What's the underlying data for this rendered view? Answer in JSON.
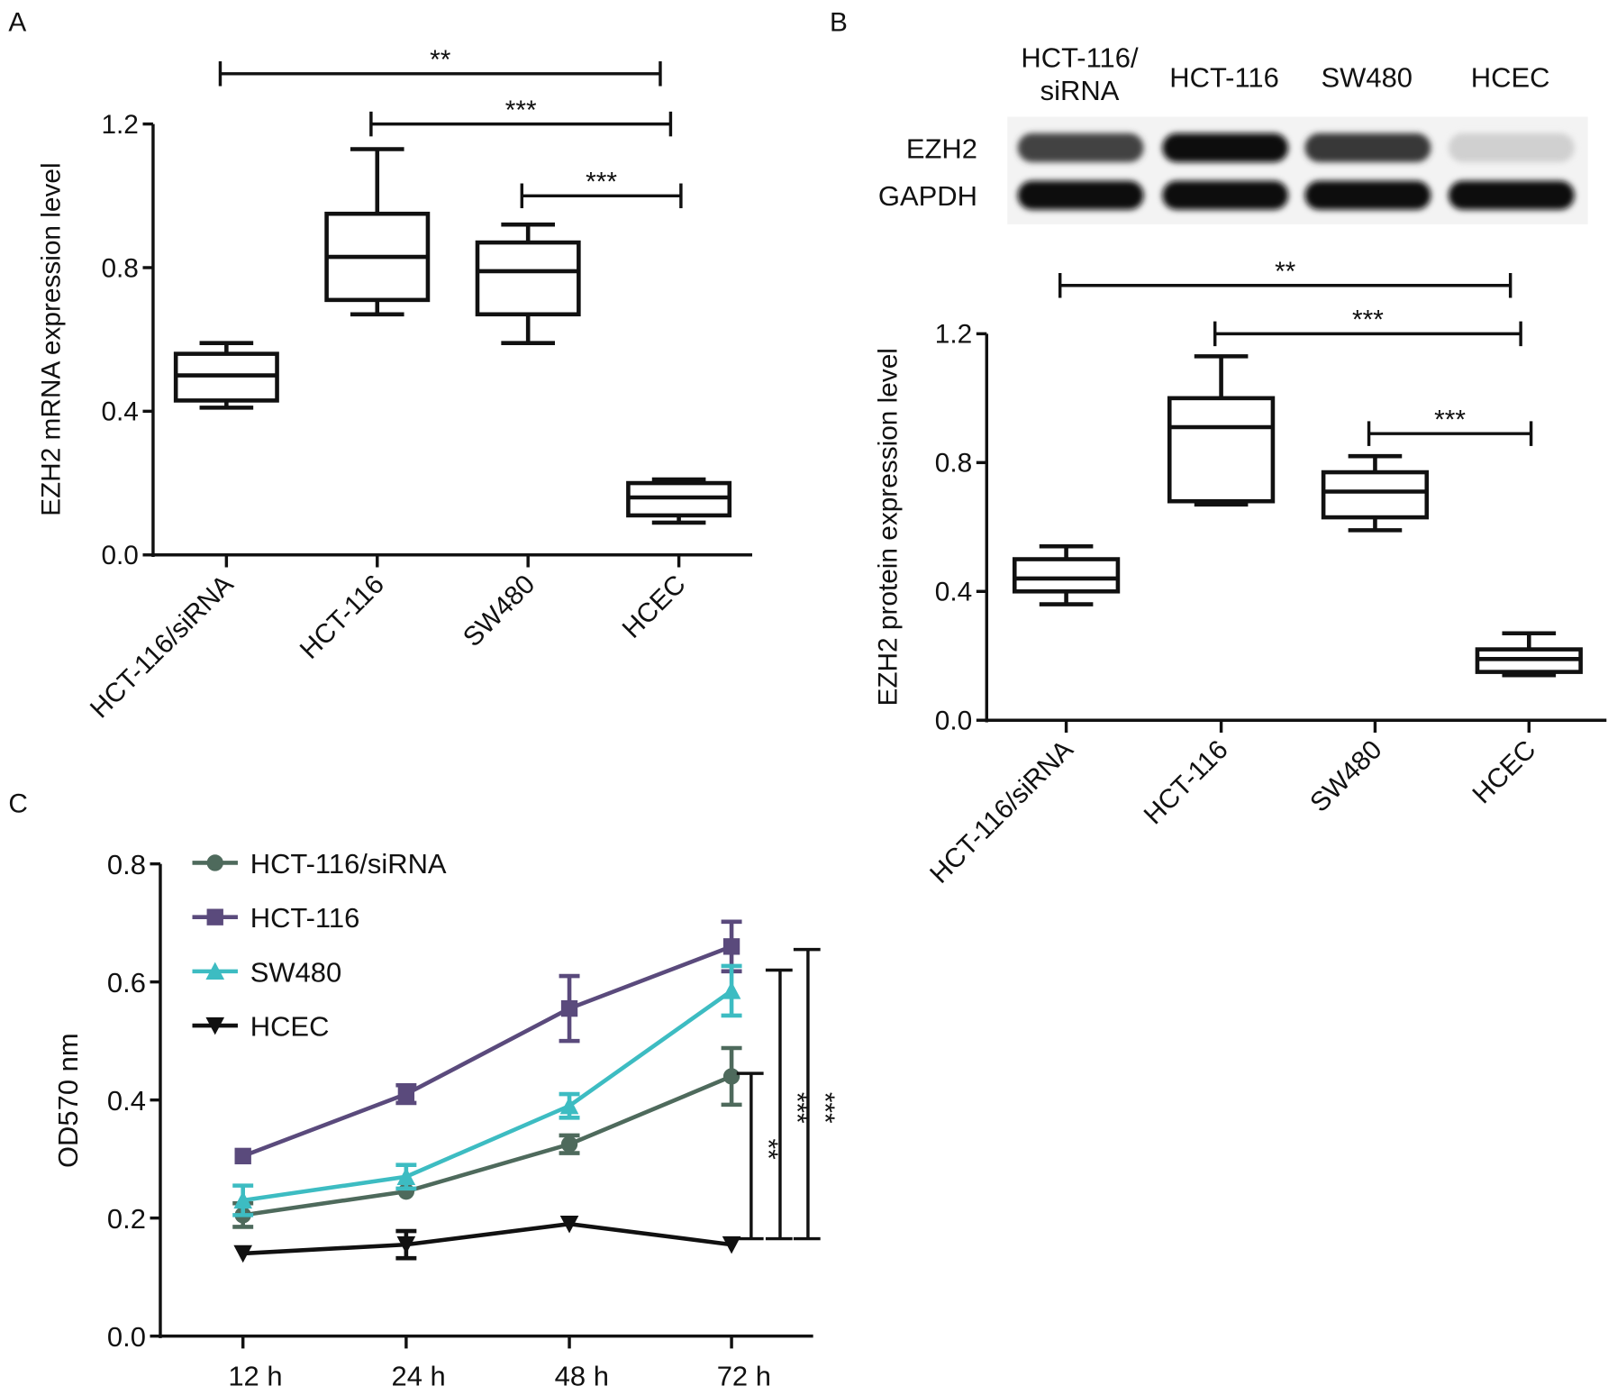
{
  "panel_labels": {
    "A": "A",
    "B": "B",
    "C": "C"
  },
  "chart_data": [
    {
      "type": "box",
      "panel": "A",
      "title": "",
      "xlabel": "",
      "ylabel": "EZH2 mRNA expression level",
      "ylim": [
        0,
        1.2
      ],
      "yticks": [
        "0.0",
        "0.4",
        "0.8",
        "1.2"
      ],
      "categories": [
        "HCT-116/siRNA",
        "HCT-116",
        "SW480",
        "HCEC"
      ],
      "boxes": [
        {
          "min": 0.41,
          "q1": 0.43,
          "median": 0.5,
          "q3": 0.56,
          "max": 0.59
        },
        {
          "min": 0.67,
          "q1": 0.71,
          "median": 0.83,
          "q3": 0.95,
          "max": 1.13
        },
        {
          "min": 0.59,
          "q1": 0.67,
          "median": 0.79,
          "q3": 0.87,
          "max": 0.92
        },
        {
          "min": 0.09,
          "q1": 0.11,
          "median": 0.16,
          "q3": 0.2,
          "max": 0.21
        }
      ],
      "significance": [
        {
          "from": 0,
          "to": 3,
          "level": 1.34,
          "label": "**"
        },
        {
          "from": 1,
          "to": 3,
          "level": 1.2,
          "label": "***"
        },
        {
          "from": 2,
          "to": 3,
          "level": 1.0,
          "label": "***"
        }
      ]
    },
    {
      "type": "western_blot",
      "panel": "B",
      "lanes": [
        "HCT-116/ siRNA",
        "HCT-116",
        "SW480",
        "HCEC"
      ],
      "lane_label_lines": [
        [
          "HCT-116/",
          "siRNA"
        ],
        [
          "HCT-116"
        ],
        [
          "SW480"
        ],
        [
          "HCEC"
        ]
      ],
      "rows": [
        {
          "name": "EZH2",
          "intensity": [
            0.75,
            1.0,
            0.8,
            0.12
          ]
        },
        {
          "name": "GAPDH",
          "intensity": [
            1.0,
            1.0,
            1.0,
            1.0
          ]
        }
      ]
    },
    {
      "type": "box",
      "panel": "B",
      "title": "",
      "xlabel": "",
      "ylabel": "EZH2 protein expression level",
      "ylim": [
        0,
        1.2
      ],
      "yticks": [
        "0.0",
        "0.4",
        "0.8",
        "1.2"
      ],
      "categories": [
        "HCT-116/siRNA",
        "HCT-116",
        "SW480",
        "HCEC"
      ],
      "boxes": [
        {
          "min": 0.36,
          "q1": 0.4,
          "median": 0.44,
          "q3": 0.5,
          "max": 0.54
        },
        {
          "min": 0.67,
          "q1": 0.68,
          "median": 0.91,
          "q3": 1.0,
          "max": 1.13
        },
        {
          "min": 0.59,
          "q1": 0.63,
          "median": 0.71,
          "q3": 0.77,
          "max": 0.82
        },
        {
          "min": 0.14,
          "q1": 0.15,
          "median": 0.19,
          "q3": 0.22,
          "max": 0.27
        }
      ],
      "significance": [
        {
          "from": 0,
          "to": 3,
          "level": 1.35,
          "label": "**"
        },
        {
          "from": 1,
          "to": 3,
          "level": 1.2,
          "label": "***"
        },
        {
          "from": 2,
          "to": 3,
          "level": 0.89,
          "label": "***"
        }
      ]
    },
    {
      "type": "line",
      "panel": "C",
      "title": "",
      "xlabel": "",
      "ylabel": "OD570 nm",
      "ylim": [
        0,
        0.8
      ],
      "yticks": [
        "0.0",
        "0.2",
        "0.4",
        "0.6",
        "0.8"
      ],
      "x": [
        "12 h",
        "24 h",
        "48 h",
        "72 h"
      ],
      "legend_position": "top-left",
      "series": [
        {
          "name": "HCT-116/siRNA",
          "color": "#4e6a5c",
          "marker": "circle",
          "values": [
            0.205,
            0.245,
            0.325,
            0.44
          ],
          "errors": [
            0.02,
            0.005,
            0.015,
            0.048
          ]
        },
        {
          "name": "HCT-116",
          "color": "#5a4a7c",
          "marker": "square",
          "values": [
            0.305,
            0.41,
            0.555,
            0.66
          ],
          "errors": [
            0.005,
            0.015,
            0.055,
            0.042
          ]
        },
        {
          "name": "SW480",
          "color": "#3dbcc2",
          "marker": "triangle-up",
          "values": [
            0.23,
            0.27,
            0.39,
            0.585
          ],
          "errors": [
            0.025,
            0.02,
            0.02,
            0.042
          ]
        },
        {
          "name": "HCEC",
          "color": "#111111",
          "marker": "triangle-down",
          "values": [
            0.14,
            0.155,
            0.19,
            0.155
          ],
          "errors": [
            0.005,
            0.023,
            0.005,
            0.005
          ]
        }
      ],
      "significance": [
        {
          "top": 0.445,
          "bottom": 0.165,
          "label": "**"
        },
        {
          "top": 0.62,
          "bottom": 0.165,
          "label": "***"
        },
        {
          "top": 0.655,
          "bottom": 0.165,
          "label": "***"
        }
      ]
    }
  ]
}
